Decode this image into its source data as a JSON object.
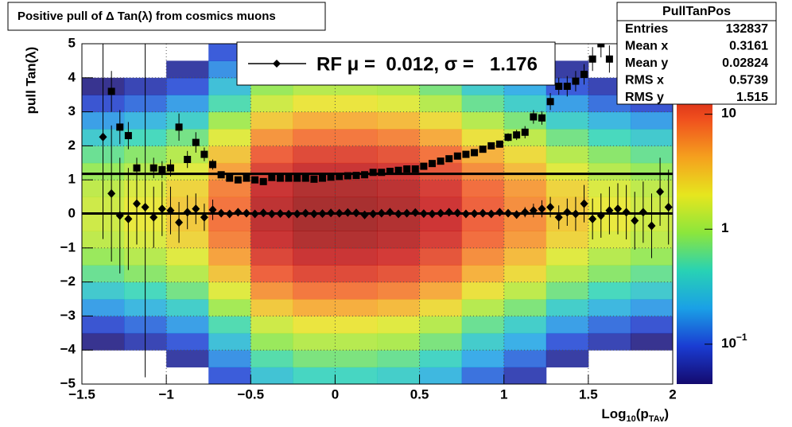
{
  "chart_data": {
    "type": "heatmap_profile",
    "title": "Positive pull of Δ Tan(λ) from cosmics muons",
    "y_label": "pull Tan(λ)",
    "x_label_parts": [
      {
        "text": "Log"
      },
      {
        "text": "10",
        "sub": true
      },
      {
        "text": "(p"
      },
      {
        "text": "TAv",
        "sub": true
      },
      {
        "text": ")"
      }
    ],
    "xlim": [
      -1.5,
      2
    ],
    "ylim": [
      -5,
      5
    ],
    "xticks": [
      {
        "value": -1.5,
        "label": "−1.5"
      },
      {
        "value": -1,
        "label": "−1"
      },
      {
        "value": -0.5,
        "label": "−0.5"
      },
      0,
      0.5,
      1,
      1.5,
      2
    ],
    "yticks": [
      {
        "value": -5,
        "label": "−5"
      },
      {
        "value": -4,
        "label": "−4"
      },
      {
        "value": -3,
        "label": "−3"
      },
      {
        "value": -2,
        "label": "−2"
      },
      {
        "value": -1,
        "label": "−1"
      },
      0,
      1,
      2,
      3,
      4,
      5
    ],
    "grid": true,
    "log_z": true,
    "zlim": [
      0.045,
      41
    ],
    "zticks": [
      {
        "value": 0.1,
        "label": "10",
        "exponent": "−1"
      },
      1,
      10
    ],
    "palette": [
      "#140a6e",
      "#1a3cd2",
      "#1aa0e6",
      "#28d2b4",
      "#8ce63c",
      "#e6e61e",
      "#f5a01e",
      "#f0501e",
      "#c81414",
      "#8c0a0a"
    ],
    "xbins": [
      -1.5,
      -1.25,
      -1,
      -0.75,
      -0.5,
      -0.25,
      0,
      0.25,
      0.5,
      0.75,
      1,
      1.25,
      1.5,
      1.75,
      2
    ],
    "ybins": [
      -5,
      -4.5,
      -4,
      -3.5,
      -3,
      -2.5,
      -2,
      -1.5,
      -1,
      -0.5,
      0,
      0.5,
      1,
      1.5,
      2,
      2.5,
      3,
      3.5,
      4,
      4.5,
      5
    ],
    "z": [
      [
        0.02,
        0.02,
        0.04,
        0.1,
        0.3,
        0.42,
        0.42,
        0.36,
        0.24,
        0.12,
        0.07,
        0.04,
        0.02,
        0.02
      ],
      [
        0.03,
        0.04,
        0.06,
        0.16,
        0.5,
        0.7,
        0.7,
        0.6,
        0.4,
        0.2,
        0.12,
        0.06,
        0.04,
        0.03
      ],
      [
        0.05,
        0.07,
        0.1,
        0.28,
        0.9,
        1.2,
        1.2,
        1.1,
        0.7,
        0.35,
        0.21,
        0.1,
        0.07,
        0.05
      ],
      [
        0.09,
        0.12,
        0.18,
        0.48,
        1.5,
        2.1,
        2.1,
        1.8,
        1.2,
        0.6,
        0.36,
        0.18,
        0.12,
        0.09
      ],
      [
        0.18,
        0.24,
        0.36,
        1,
        3,
        4.2,
        4.2,
        3.6,
        2.4,
        1.2,
        0.72,
        0.36,
        0.24,
        0.18
      ],
      [
        0.33,
        0.44,
        0.66,
        1.8,
        5.5,
        7.7,
        7.7,
        6.6,
        4.4,
        2.2,
        1.3,
        0.66,
        0.44,
        0.33
      ],
      [
        0.6,
        0.8,
        1.2,
        3.2,
        10,
        14,
        14,
        12,
        8,
        4,
        2.4,
        1.2,
        0.8,
        0.6
      ],
      [
        0.9,
        1.2,
        1.8,
        4.8,
        15,
        21,
        21,
        18,
        12,
        6,
        3.6,
        1.8,
        1.2,
        0.9
      ],
      [
        1.3,
        1.7,
        2.6,
        6.8,
        21,
        30,
        30,
        26,
        17,
        8.5,
        5.1,
        2.6,
        1.7,
        1.3
      ],
      [
        1.5,
        2,
        3,
        8,
        25,
        35,
        35,
        30,
        20,
        10,
        6,
        3,
        2,
        1.5
      ],
      [
        1.5,
        2,
        3,
        8,
        25,
        35,
        35,
        30,
        20,
        10,
        6,
        3,
        2,
        1.5
      ],
      [
        1.3,
        1.7,
        2.6,
        6.8,
        21,
        30,
        30,
        26,
        17,
        8.5,
        5.1,
        2.6,
        1.7,
        1.3
      ],
      [
        0.9,
        1.2,
        1.8,
        4.8,
        15,
        21,
        21,
        18,
        12,
        6,
        3.6,
        1.8,
        1.2,
        0.9
      ],
      [
        0.6,
        0.8,
        1.2,
        3.2,
        10,
        14,
        14,
        12,
        8,
        4,
        2.4,
        1.2,
        0.8,
        0.6
      ],
      [
        0.33,
        0.44,
        0.66,
        1.8,
        5.5,
        7.7,
        7.7,
        6.6,
        4.4,
        2.2,
        1.3,
        0.66,
        0.44,
        0.33
      ],
      [
        0.18,
        0.24,
        0.36,
        1,
        3,
        4.2,
        4.2,
        3.6,
        2.4,
        1.2,
        0.72,
        0.36,
        0.24,
        0.18
      ],
      [
        0.09,
        0.12,
        0.18,
        0.48,
        1.5,
        2.1,
        2.1,
        1.8,
        1.2,
        0.6,
        0.36,
        0.18,
        0.12,
        0.09
      ],
      [
        0.05,
        0.07,
        0.1,
        0.28,
        0.9,
        1.2,
        1.2,
        1.1,
        0.7,
        0.35,
        0.21,
        0.1,
        0.07,
        0.05
      ],
      [
        0.03,
        0.04,
        0.06,
        0.16,
        0.5,
        0.7,
        0.7,
        0.6,
        0.4,
        0.2,
        0.12,
        0.06,
        0.04,
        0.03
      ],
      [
        0.02,
        0.02,
        0.04,
        0.1,
        0.3,
        0.42,
        0.42,
        0.36,
        0.24,
        0.12,
        0.07,
        0.04,
        0.02,
        0.02
      ]
    ],
    "x": [
      -1.375,
      -1.325,
      -1.275,
      -1.225,
      -1.175,
      -1.125,
      -1.075,
      -1.025,
      -0.975,
      -0.925,
      -0.875,
      -0.825,
      -0.775,
      -0.725,
      -0.675,
      -0.625,
      -0.575,
      -0.525,
      -0.475,
      -0.425,
      -0.375,
      -0.325,
      -0.275,
      -0.225,
      -0.175,
      -0.125,
      -0.075,
      -0.025,
      0.025,
      0.075,
      0.125,
      0.175,
      0.225,
      0.275,
      0.325,
      0.375,
      0.425,
      0.475,
      0.525,
      0.575,
      0.625,
      0.675,
      0.725,
      0.775,
      0.825,
      0.875,
      0.925,
      0.975,
      1.025,
      1.075,
      1.125,
      1.175,
      1.225,
      1.275,
      1.325,
      1.375,
      1.425,
      1.475,
      1.525,
      1.575,
      1.625,
      1.675,
      1.725,
      1.775,
      1.825,
      1.875,
      1.925,
      1.975
    ],
    "series": [
      {
        "marker": "square",
        "color": "#000000",
        "values": [
          null,
          3.6,
          2.55,
          2.3,
          1.35,
          null,
          1.35,
          1.3,
          1.35,
          2.55,
          1.6,
          2.1,
          1.75,
          1.45,
          1.15,
          1.05,
          1.0,
          1.05,
          1.0,
          0.95,
          1.07,
          1.05,
          1.05,
          1.05,
          1.05,
          1.02,
          1.05,
          1.08,
          1.1,
          1.12,
          1.13,
          1.15,
          1.22,
          1.22,
          1.25,
          1.28,
          1.32,
          1.32,
          1.4,
          1.48,
          1.55,
          1.62,
          1.7,
          1.75,
          1.8,
          1.9,
          2.0,
          2.05,
          2.25,
          2.32,
          2.4,
          2.85,
          2.82,
          3.3,
          3.75,
          3.75,
          3.9,
          4.1,
          4.55,
          5.0,
          4.55,
          null,
          null,
          null,
          null,
          null,
          null,
          null
        ],
        "errors": [
          null,
          0.6,
          0.5,
          0.4,
          0.3,
          null,
          0.3,
          0.25,
          0.25,
          0.4,
          0.25,
          0.3,
          0.2,
          0.15,
          0.06,
          0.04,
          0.03,
          0.03,
          0.02,
          0.02,
          0.02,
          0.02,
          0.02,
          0.02,
          0.02,
          0.02,
          0.02,
          0.02,
          0.02,
          0.02,
          0.02,
          0.02,
          0.02,
          0.02,
          0.02,
          0.03,
          0.03,
          0.03,
          0.04,
          0.04,
          0.05,
          0.05,
          0.06,
          0.06,
          0.07,
          0.08,
          0.1,
          0.1,
          0.12,
          0.15,
          0.18,
          0.2,
          0.2,
          0.25,
          0.25,
          0.3,
          0.3,
          0.3,
          0.35,
          0.4,
          0.4,
          null,
          null,
          null,
          null,
          null,
          null,
          null
        ]
      },
      {
        "marker": "diamond",
        "color": "#000000",
        "values": [
          2.26,
          0.6,
          -0.05,
          -0.15,
          0.3,
          0.2,
          -0.1,
          0.15,
          0.1,
          -0.25,
          0.05,
          0.15,
          -0.1,
          0.12,
          0.02,
          0.0,
          0.05,
          0.02,
          0.0,
          0.03,
          0.0,
          0.01,
          -0.01,
          0.0,
          0.02,
          0.0,
          0.01,
          0.03,
          0.02,
          0.04,
          0.03,
          -0.03,
          0.0,
          0.02,
          0.05,
          0.0,
          0.02,
          0.04,
          0.01,
          0.0,
          0.02,
          0.05,
          0.03,
          0.0,
          0.01,
          0.02,
          0.0,
          0.05,
          0.02,
          -0.02,
          0.05,
          0.1,
          0.15,
          0.2,
          -0.1,
          0.05,
          0.0,
          0.3,
          -0.15,
          -0.05,
          0.1,
          0.15,
          0.05,
          -0.2,
          0.05,
          -0.35,
          0.65,
          0.2
        ],
        "errors": [
          3.0,
          2.0,
          1.7,
          1.5,
          1.2,
          5.0,
          0.9,
          0.8,
          0.7,
          0.6,
          0.5,
          0.45,
          0.4,
          0.3,
          0.1,
          0.06,
          0.05,
          0.04,
          0.04,
          0.03,
          0.03,
          0.03,
          0.03,
          0.03,
          0.03,
          0.03,
          0.03,
          0.03,
          0.03,
          0.03,
          0.03,
          0.03,
          0.03,
          0.03,
          0.03,
          0.03,
          0.03,
          0.03,
          0.03,
          0.03,
          0.04,
          0.04,
          0.05,
          0.05,
          0.06,
          0.07,
          0.08,
          0.09,
          0.1,
          0.12,
          0.15,
          0.2,
          0.25,
          0.3,
          0.35,
          0.4,
          0.5,
          0.55,
          0.6,
          0.65,
          0.7,
          0.75,
          0.8,
          0.85,
          0.9,
          0.95,
          1.0,
          1.1
        ]
      }
    ],
    "fit_lines": {
      "mu": 0.012,
      "sigma": 1.176
    },
    "legend": {
      "text": "RF μ =  0.012, σ =   1.176"
    },
    "stats": {
      "name": "PullTanPos",
      "rows": [
        [
          "Entries",
          132837
        ],
        [
          "Mean x",
          0.3161
        ],
        [
          "Mean y",
          0.02824
        ],
        [
          "RMS x",
          0.5739
        ],
        [
          "RMS y",
          1.515
        ]
      ]
    }
  }
}
